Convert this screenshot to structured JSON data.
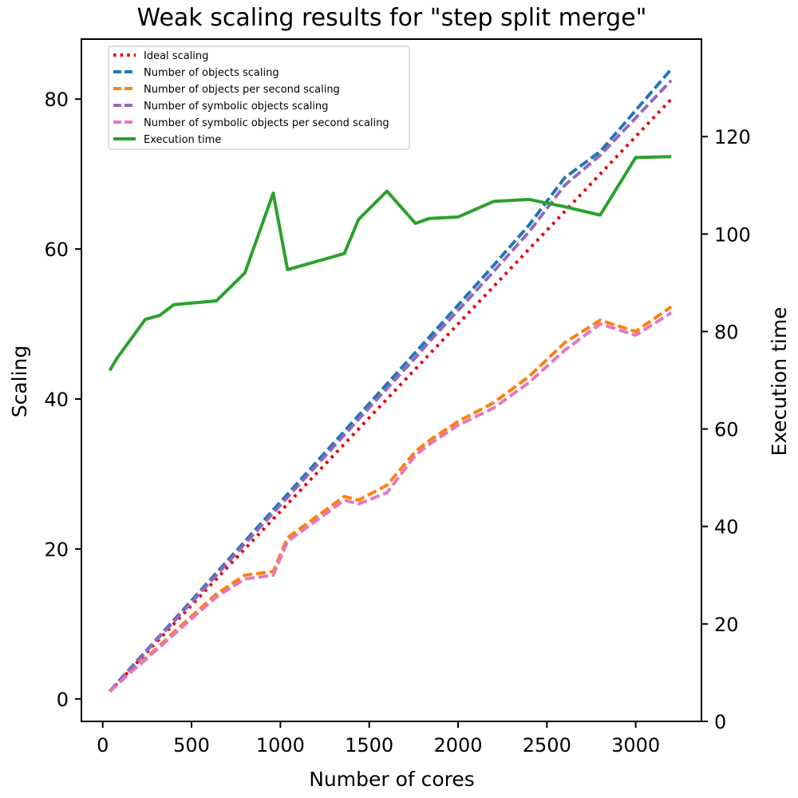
{
  "chart_data": {
    "type": "line",
    "title": "Weak scaling results for \"step split merge\"",
    "xlabel": "Number of cores",
    "ylabel": "Scaling",
    "y2label": "Execution time",
    "xlim": [
      -120,
      3370
    ],
    "ylim": [
      -3,
      88
    ],
    "y2lim": [
      0,
      140
    ],
    "xticks": [
      0,
      500,
      1000,
      1500,
      2000,
      2500,
      3000
    ],
    "yticks": [
      0,
      20,
      40,
      60,
      80
    ],
    "y2ticks": [
      0,
      20,
      40,
      60,
      80,
      100,
      120
    ],
    "legend_position": "upper left",
    "grid": false,
    "x": [
      40,
      80,
      160,
      240,
      320,
      400,
      640,
      800,
      960,
      1040,
      1360,
      1440,
      1600,
      1760,
      1840,
      2000,
      2200,
      2400,
      2600,
      2800,
      3000,
      3200
    ],
    "series": [
      {
        "name": "Ideal scaling",
        "axis": "left",
        "style": "dotted",
        "color": "#e8000b",
        "values": [
          1,
          2,
          4,
          6,
          8,
          10,
          16,
          20,
          24,
          26,
          34,
          36,
          40,
          44,
          46,
          50,
          55,
          60,
          65,
          70,
          75,
          80
        ]
      },
      {
        "name": "Number of objects scaling",
        "axis": "left",
        "style": "dashed",
        "color": "#1f77b4",
        "values": [
          1,
          2.1,
          4.2,
          6.3,
          8.4,
          10.5,
          16.8,
          21,
          25.2,
          27.3,
          35.7,
          37.8,
          42,
          46.2,
          48.3,
          52.5,
          57.8,
          63.2,
          69.5,
          73,
          78.5,
          84
        ]
      },
      {
        "name": "Number of objects per second scaling",
        "axis": "left",
        "style": "dashed",
        "color": "#ff7f0e",
        "values": [
          1,
          1.9,
          3.7,
          5.4,
          7.1,
          8.9,
          14,
          16.5,
          17,
          21.5,
          27,
          26.5,
          28.5,
          33,
          34.5,
          37,
          39.5,
          43,
          47.5,
          50.5,
          49,
          52.3
        ]
      },
      {
        "name": "Number of symbolic objects scaling",
        "axis": "left",
        "style": "dashed",
        "color": "#9467bd",
        "values": [
          1,
          2.05,
          4.1,
          6.2,
          8.3,
          10.3,
          16.5,
          20.7,
          24.8,
          26.9,
          35.2,
          37.3,
          41.4,
          45.5,
          47.7,
          51.8,
          57,
          62.3,
          68.5,
          72.5,
          77.5,
          82.5
        ]
      },
      {
        "name": "Number of symbolic objects per second scaling",
        "axis": "left",
        "style": "dashed",
        "color": "#e377c2",
        "values": [
          1,
          1.85,
          3.6,
          5.2,
          6.9,
          8.6,
          13.6,
          16,
          16.5,
          21,
          26.5,
          26,
          27.5,
          32.5,
          34,
          36.5,
          38.8,
          42.2,
          46.5,
          50,
          48.5,
          51.5
        ]
      },
      {
        "name": "Execution time",
        "axis": "right",
        "style": "solid",
        "color": "#2ca02c",
        "values": [
          72,
          74.5,
          78.5,
          82.5,
          83.3,
          85.5,
          86.3,
          92,
          108.4,
          92.7,
          96,
          103,
          108.8,
          102.2,
          103.2,
          103.5,
          106.7,
          107.1,
          105.6,
          103.9,
          115.7,
          115.9
        ]
      }
    ]
  }
}
